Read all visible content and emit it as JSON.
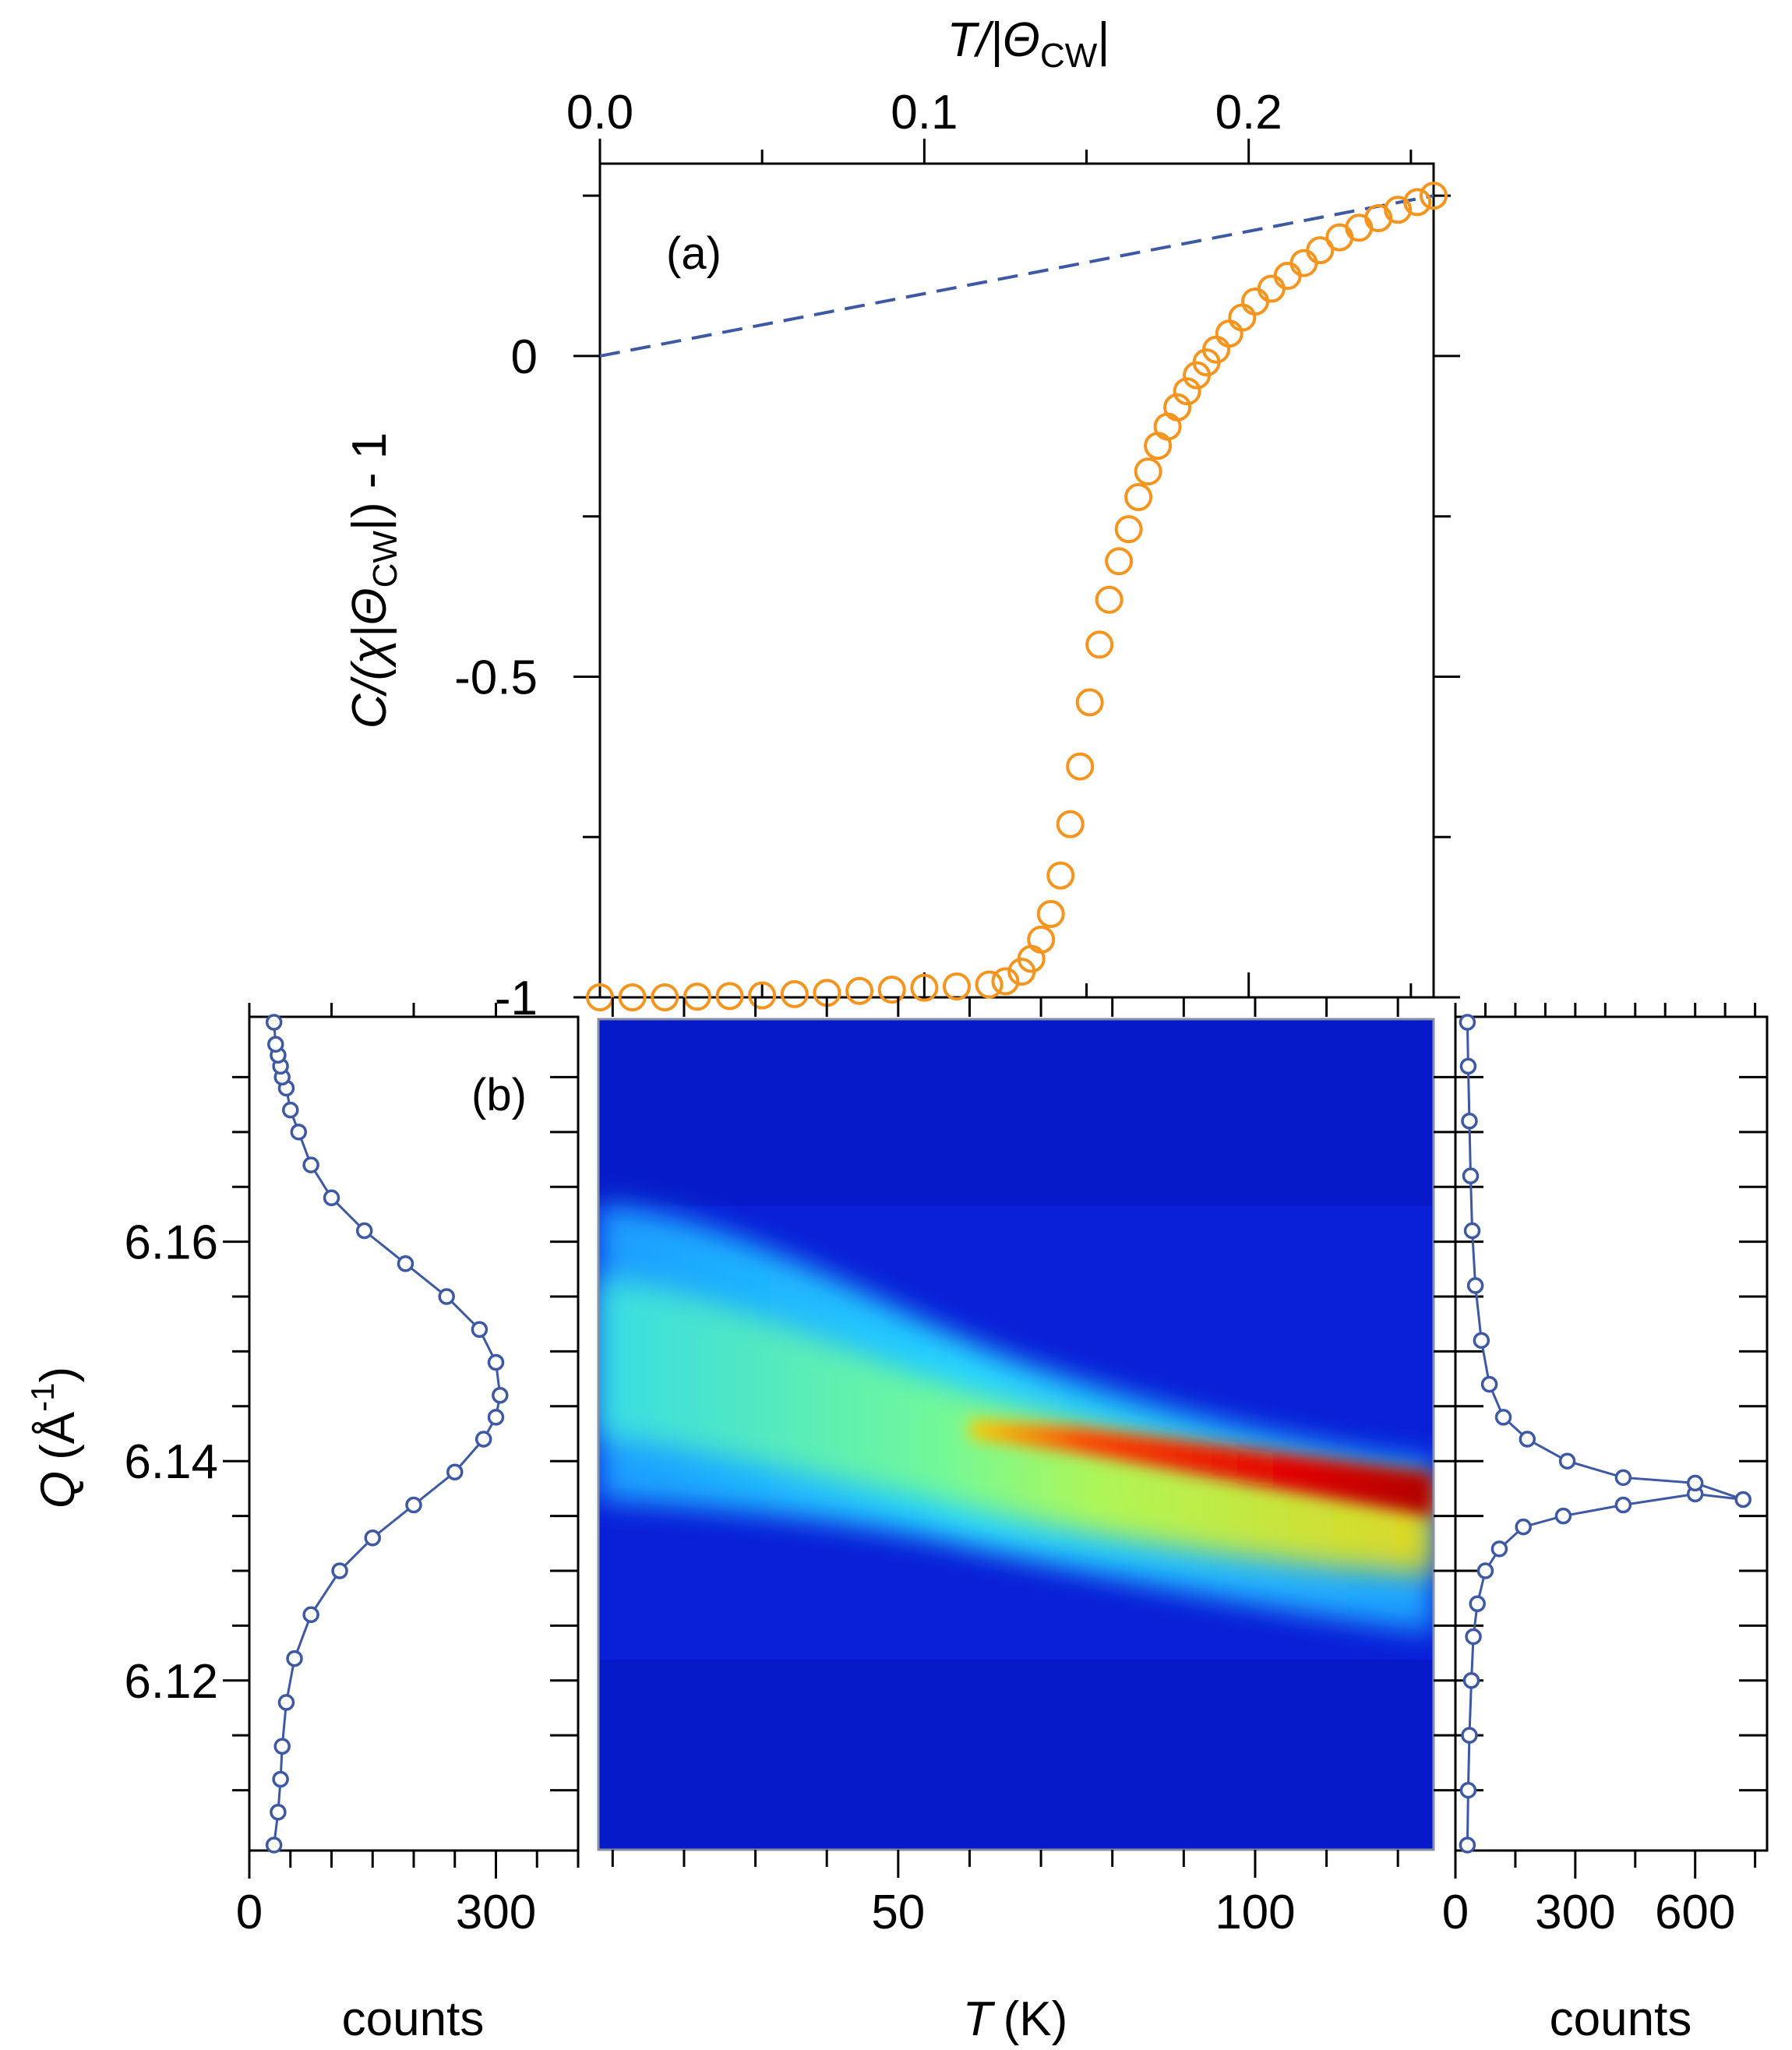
{
  "chart_data": [
    {
      "id": "a",
      "type": "scatter",
      "panel_label": "(a)",
      "ylabel_main": "C/(χ|Θ",
      "ylabel_sub": "CW",
      "ylabel_tail": "|) - 1",
      "xlabel_main": "T/|Θ",
      "xlabel_sub": "CW",
      "xlabel_tail": "|",
      "xlim": [
        0.0,
        0.257
      ],
      "ylim": [
        -1.0,
        0.3
      ],
      "x_ticks": [
        "0.0",
        "0.1",
        "0.2"
      ],
      "y_ticks": [
        "0",
        "-0.5",
        "-1"
      ],
      "marker_color": "#f7941d",
      "line_color": "#3d58a5",
      "dashed_line": [
        [
          0.0,
          0.0
        ],
        [
          0.257,
          0.25
        ]
      ],
      "x": [
        0.0,
        0.01,
        0.02,
        0.03,
        0.04,
        0.05,
        0.06,
        0.07,
        0.08,
        0.09,
        0.1,
        0.11,
        0.12,
        0.125,
        0.13,
        0.133,
        0.136,
        0.139,
        0.142,
        0.145,
        0.148,
        0.151,
        0.154,
        0.157,
        0.16,
        0.163,
        0.166,
        0.169,
        0.172,
        0.175,
        0.178,
        0.181,
        0.184,
        0.187,
        0.19,
        0.194,
        0.198,
        0.202,
        0.207,
        0.212,
        0.217,
        0.222,
        0.228,
        0.234,
        0.24,
        0.246,
        0.252,
        0.257
      ],
      "y": [
        -1.0,
        -1.0,
        -1.0,
        -0.999,
        -0.998,
        -0.997,
        -0.995,
        -0.993,
        -0.99,
        -0.988,
        -0.985,
        -0.983,
        -0.98,
        -0.975,
        -0.96,
        -0.94,
        -0.91,
        -0.87,
        -0.81,
        -0.73,
        -0.64,
        -0.54,
        -0.45,
        -0.38,
        -0.32,
        -0.27,
        -0.22,
        -0.18,
        -0.14,
        -0.11,
        -0.08,
        -0.055,
        -0.03,
        -0.01,
        0.01,
        0.035,
        0.06,
        0.085,
        0.105,
        0.125,
        0.145,
        0.165,
        0.185,
        0.2,
        0.215,
        0.228,
        0.24,
        0.25
      ]
    },
    {
      "id": "b-left",
      "type": "line",
      "panel_label": "(b)",
      "ylabel_main": "Q",
      "ylabel_unit": "(Å",
      "ylabel_sup": "-1",
      "ylabel_close": ")",
      "xlabel": "counts",
      "xlim": [
        0,
        400
      ],
      "ylim": [
        6.1045,
        6.1805
      ],
      "x_ticks": [
        "0",
        "300"
      ],
      "y_ticks": [
        "6.12",
        "6.14",
        "6.16"
      ],
      "line_color": "#3d58a5",
      "x": [
        30,
        35,
        38,
        40,
        45,
        55,
        75,
        110,
        150,
        200,
        250,
        285,
        300,
        305,
        300,
        280,
        240,
        190,
        140,
        100,
        75,
        60,
        50,
        45,
        40,
        38,
        35,
        32,
        30
      ],
      "q": [
        6.105,
        6.108,
        6.111,
        6.114,
        6.118,
        6.122,
        6.126,
        6.13,
        6.133,
        6.136,
        6.139,
        6.142,
        6.144,
        6.146,
        6.149,
        6.152,
        6.155,
        6.158,
        6.161,
        6.164,
        6.167,
        6.17,
        6.172,
        6.174,
        6.175,
        6.176,
        6.177,
        6.178,
        6.18
      ]
    },
    {
      "id": "b-map",
      "type": "heatmap",
      "xlabel_main": "T",
      "xlabel_unit": "(K)",
      "xlim": [
        8,
        125
      ],
      "ylim": [
        6.1045,
        6.1805
      ],
      "x_ticks": [
        "50",
        "100"
      ],
      "colormap": [
        "#00008b",
        "#0000ff",
        "#00c8ff",
        "#ffff00",
        "#ff0000",
        "#8b0000"
      ],
      "ridge_T": [
        8,
        50,
        60,
        75,
        100,
        125
      ],
      "ridge_Q": [
        6.147,
        6.145,
        6.143,
        6.142,
        6.1395,
        6.137
      ]
    },
    {
      "id": "b-right",
      "type": "line",
      "xlabel": "counts",
      "xlim": [
        0,
        780
      ],
      "ylim": [
        6.1045,
        6.1805
      ],
      "x_ticks": [
        "0",
        "300",
        "600"
      ],
      "line_color": "#3d58a5",
      "x": [
        30,
        32,
        35,
        40,
        45,
        55,
        75,
        110,
        170,
        270,
        420,
        600,
        720,
        600,
        420,
        280,
        180,
        120,
        85,
        65,
        50,
        42,
        38,
        35,
        32,
        30
      ],
      "q": [
        6.105,
        6.11,
        6.115,
        6.12,
        6.124,
        6.127,
        6.13,
        6.132,
        6.134,
        6.135,
        6.136,
        6.137,
        6.1365,
        6.138,
        6.1385,
        6.14,
        6.142,
        6.144,
        6.147,
        6.151,
        6.156,
        6.161,
        6.166,
        6.171,
        6.176,
        6.18
      ]
    }
  ]
}
